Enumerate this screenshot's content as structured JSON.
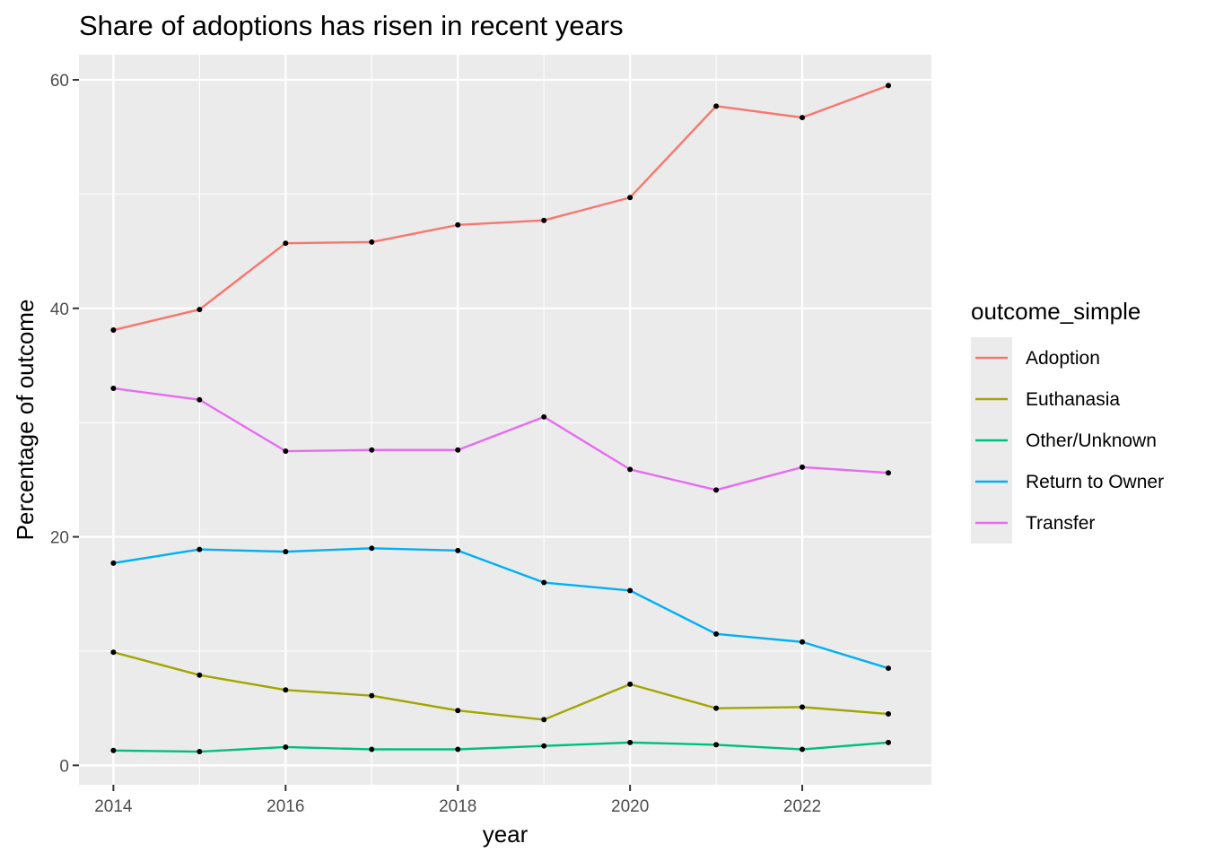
{
  "chart_data": {
    "type": "line",
    "title": "Share of adoptions has risen in recent years",
    "xlabel": "year",
    "ylabel": "Percentage of outcome",
    "x": [
      2014,
      2015,
      2016,
      2017,
      2018,
      2019,
      2020,
      2021,
      2022,
      2023
    ],
    "xlim": [
      2013.6,
      2023.5
    ],
    "ylim": [
      -1.7,
      62.2
    ],
    "x_ticks": [
      "2014",
      "2016",
      "2018",
      "2020",
      "2022"
    ],
    "y_ticks": [
      "0",
      "20",
      "40",
      "60"
    ],
    "grid": true,
    "legend": {
      "title": "outcome_simple",
      "position": "right"
    },
    "series": [
      {
        "name": "Adoption",
        "color": "#F8766D",
        "values": [
          38.1,
          39.9,
          45.7,
          45.8,
          47.3,
          47.7,
          49.7,
          57.7,
          56.7,
          59.5
        ]
      },
      {
        "name": "Euthanasia",
        "color": "#A3A500",
        "values": [
          9.9,
          7.9,
          6.6,
          6.1,
          4.8,
          4.0,
          7.1,
          5.0,
          5.1,
          4.5
        ]
      },
      {
        "name": "Other/Unknown",
        "color": "#00BF7D",
        "values": [
          1.3,
          1.2,
          1.6,
          1.4,
          1.4,
          1.7,
          2.0,
          1.8,
          1.4,
          2.0
        ]
      },
      {
        "name": "Return to Owner",
        "color": "#00B0F6",
        "values": [
          17.7,
          18.9,
          18.7,
          19.0,
          18.8,
          16.0,
          15.3,
          11.5,
          10.8,
          8.5
        ]
      },
      {
        "name": "Transfer",
        "color": "#E76BF3",
        "values": [
          33.0,
          32.0,
          27.5,
          27.6,
          27.6,
          30.5,
          25.9,
          24.1,
          26.1,
          25.6
        ]
      }
    ]
  }
}
